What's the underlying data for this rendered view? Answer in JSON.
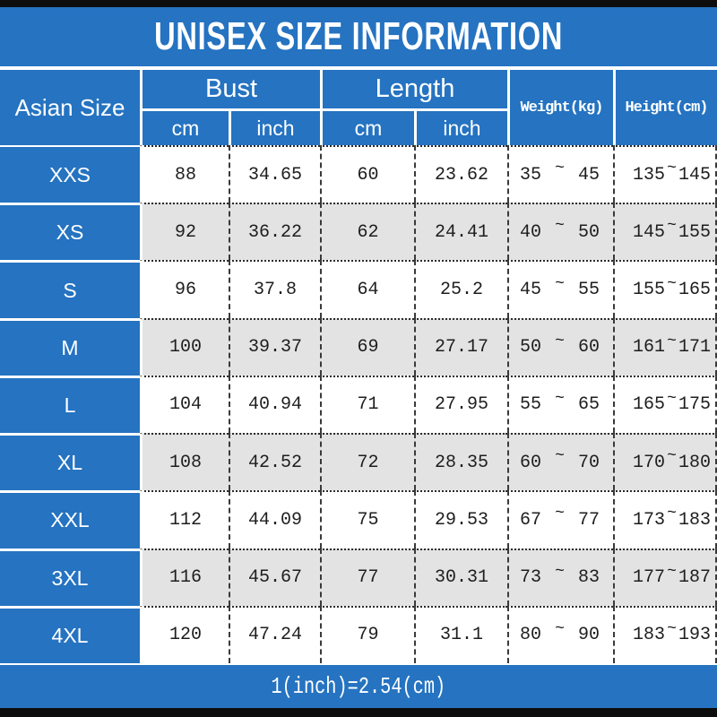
{
  "chart_data": {
    "type": "table",
    "title": "UNISEX SIZE INFORMATION",
    "footer_note": "1(inch)=2.54(cm)",
    "range_separator": "~",
    "column_groups": [
      {
        "label": "Asian Size",
        "rowspan": 2
      },
      {
        "label": "Bust",
        "subs": [
          "cm",
          "inch"
        ]
      },
      {
        "label": "Length",
        "subs": [
          "cm",
          "inch"
        ]
      },
      {
        "label": "Weight(kg)",
        "rowspan": 2
      },
      {
        "label": "Height(cm)",
        "rowspan": 2
      }
    ],
    "rows": [
      {
        "size": "XXS",
        "bust_cm": "88",
        "bust_inch": "34.65",
        "length_cm": "60",
        "length_inch": "23.62",
        "weight_min": "35",
        "weight_max": "45",
        "height_min": "135",
        "height_max": "145"
      },
      {
        "size": "XS",
        "bust_cm": "92",
        "bust_inch": "36.22",
        "length_cm": "62",
        "length_inch": "24.41",
        "weight_min": "40",
        "weight_max": "50",
        "height_min": "145",
        "height_max": "155"
      },
      {
        "size": "S",
        "bust_cm": "96",
        "bust_inch": "37.8",
        "length_cm": "64",
        "length_inch": "25.2",
        "weight_min": "45",
        "weight_max": "55",
        "height_min": "155",
        "height_max": "165"
      },
      {
        "size": "M",
        "bust_cm": "100",
        "bust_inch": "39.37",
        "length_cm": "69",
        "length_inch": "27.17",
        "weight_min": "50",
        "weight_max": "60",
        "height_min": "161",
        "height_max": "171"
      },
      {
        "size": "L",
        "bust_cm": "104",
        "bust_inch": "40.94",
        "length_cm": "71",
        "length_inch": "27.95",
        "weight_min": "55",
        "weight_max": "65",
        "height_min": "165",
        "height_max": "175"
      },
      {
        "size": "XL",
        "bust_cm": "108",
        "bust_inch": "42.52",
        "length_cm": "72",
        "length_inch": "28.35",
        "weight_min": "60",
        "weight_max": "70",
        "height_min": "170",
        "height_max": "180"
      },
      {
        "size": "XXL",
        "bust_cm": "112",
        "bust_inch": "44.09",
        "length_cm": "75",
        "length_inch": "29.53",
        "weight_min": "67",
        "weight_max": "77",
        "height_min": "173",
        "height_max": "183"
      },
      {
        "size": "3XL",
        "bust_cm": "116",
        "bust_inch": "45.67",
        "length_cm": "77",
        "length_inch": "30.31",
        "weight_min": "73",
        "weight_max": "83",
        "height_min": "177",
        "height_max": "187"
      },
      {
        "size": "4XL",
        "bust_cm": "120",
        "bust_inch": "47.24",
        "length_cm": "79",
        "length_inch": "31.1",
        "weight_min": "80",
        "weight_max": "90",
        "height_min": "183",
        "height_max": "193"
      }
    ]
  },
  "colors": {
    "accent_blue": "#2573c1",
    "row_alt_gray": "#e4e3e3",
    "frame_black": "#0d0d0d"
  }
}
